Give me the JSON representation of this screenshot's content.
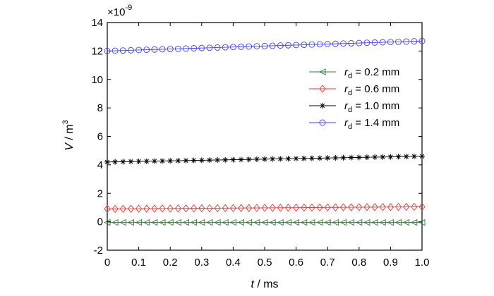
{
  "chart_data": {
    "type": "line",
    "multiplier_label": {
      "prefix": "×10",
      "exponent": "-9"
    },
    "xlabel": {
      "var": "t",
      "unit": " / ms"
    },
    "ylabel": {
      "var": "V",
      "unit": " / m",
      "sup": "3"
    },
    "xlim": [
      0,
      1.0
    ],
    "ylim": [
      -2,
      14
    ],
    "xticks": [
      0,
      0.1,
      0.2,
      0.3,
      0.4,
      0.5,
      0.6,
      0.7,
      0.8,
      0.9,
      1.0
    ],
    "xtick_labels": [
      "0",
      "0.1",
      "0.2",
      "0.3",
      "0.4",
      "0.5",
      "0.6",
      "0.7",
      "0.8",
      "0.9",
      "1.0"
    ],
    "yticks": [
      -2,
      0,
      2,
      4,
      6,
      8,
      10,
      12,
      14
    ],
    "ytick_labels": [
      "-2",
      "0",
      "2",
      "4",
      "6",
      "8",
      "10",
      "12",
      "14"
    ],
    "grid": false,
    "legend_position": "right",
    "x_samples": {
      "start": 0,
      "end": 1.0,
      "count": 41
    },
    "series": [
      {
        "name": "r_d = 0.2 mm",
        "label_var": "r",
        "label_sub": "d",
        "label_rest": " = 0.2 mm",
        "color": "#2e7d32",
        "marker": "triangle-left",
        "y_start": -0.05,
        "y_end": -0.05
      },
      {
        "name": "r_d = 0.6 mm",
        "label_var": "r",
        "label_sub": "d",
        "label_rest": " = 0.6 mm",
        "color": "#e53935",
        "marker": "diamond",
        "y_start": 0.9,
        "y_end": 1.05
      },
      {
        "name": "r_d = 1.0 mm",
        "label_var": "r",
        "label_sub": "d",
        "label_rest": " = 1.0 mm",
        "color": "#000000",
        "marker": "star",
        "y_start": 4.2,
        "y_end": 4.6
      },
      {
        "name": "r_d = 1.4 mm",
        "label_var": "r",
        "label_sub": "d",
        "label_rest": " = 1.4 mm",
        "color": "#3f3fe8",
        "marker": "circle",
        "y_start": 12.0,
        "y_end": 12.7
      }
    ]
  }
}
